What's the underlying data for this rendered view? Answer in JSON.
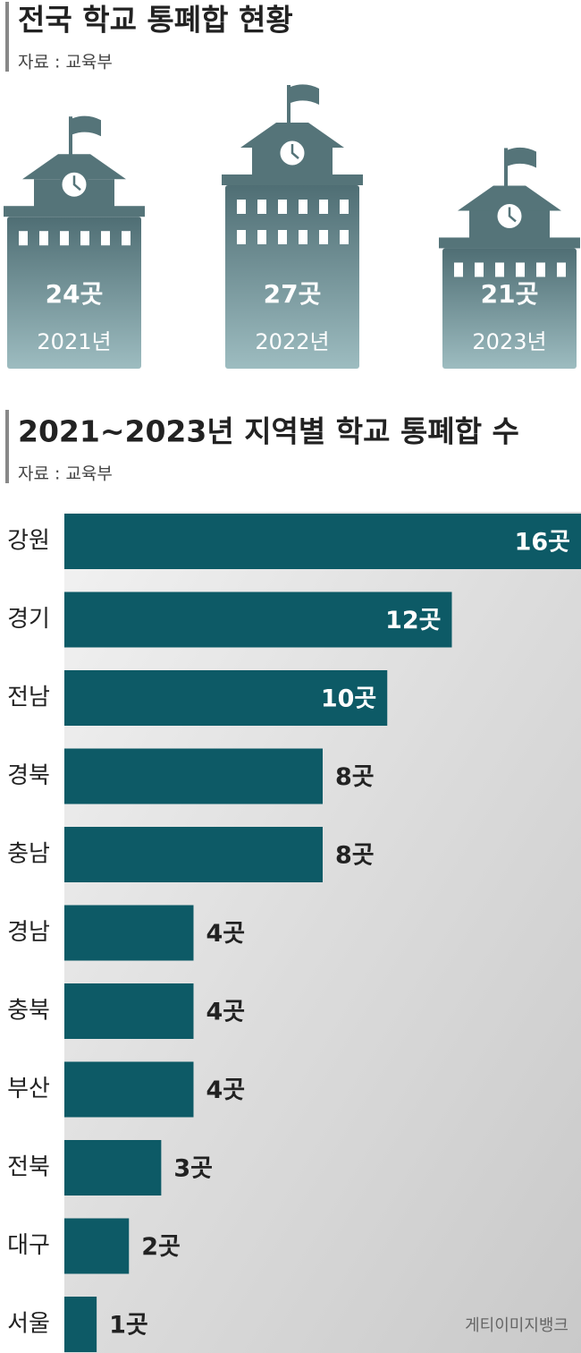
{
  "chart_data": [
    {
      "type": "pictograph",
      "title": "전국 학교 통폐합 현황",
      "source": "자료 : 교육부",
      "categories": [
        "2021년",
        "2022년",
        "2023년"
      ],
      "values": [
        24,
        27,
        21
      ],
      "value_labels": [
        "24곳",
        "27곳",
        "21곳"
      ],
      "color": "#6b8b90"
    },
    {
      "type": "hbar",
      "title": "2021~2023년 지역별 학교 통폐합 수",
      "source": "자료 : 교육부",
      "categories": [
        "강원",
        "경기",
        "전남",
        "경북",
        "충남",
        "경남",
        "충북",
        "부산",
        "전북",
        "대구",
        "서울"
      ],
      "values": [
        16,
        12,
        10,
        8,
        8,
        4,
        4,
        4,
        3,
        2,
        1
      ],
      "value_labels": [
        "16곳",
        "12곳",
        "10곳",
        "8곳",
        "8곳",
        "4곳",
        "4곳",
        "4곳",
        "3곳",
        "2곳",
        "1곳"
      ],
      "xlim": [
        0,
        16
      ],
      "color": "#0d5a66",
      "image_credit": "게티이미지뱅크"
    }
  ]
}
